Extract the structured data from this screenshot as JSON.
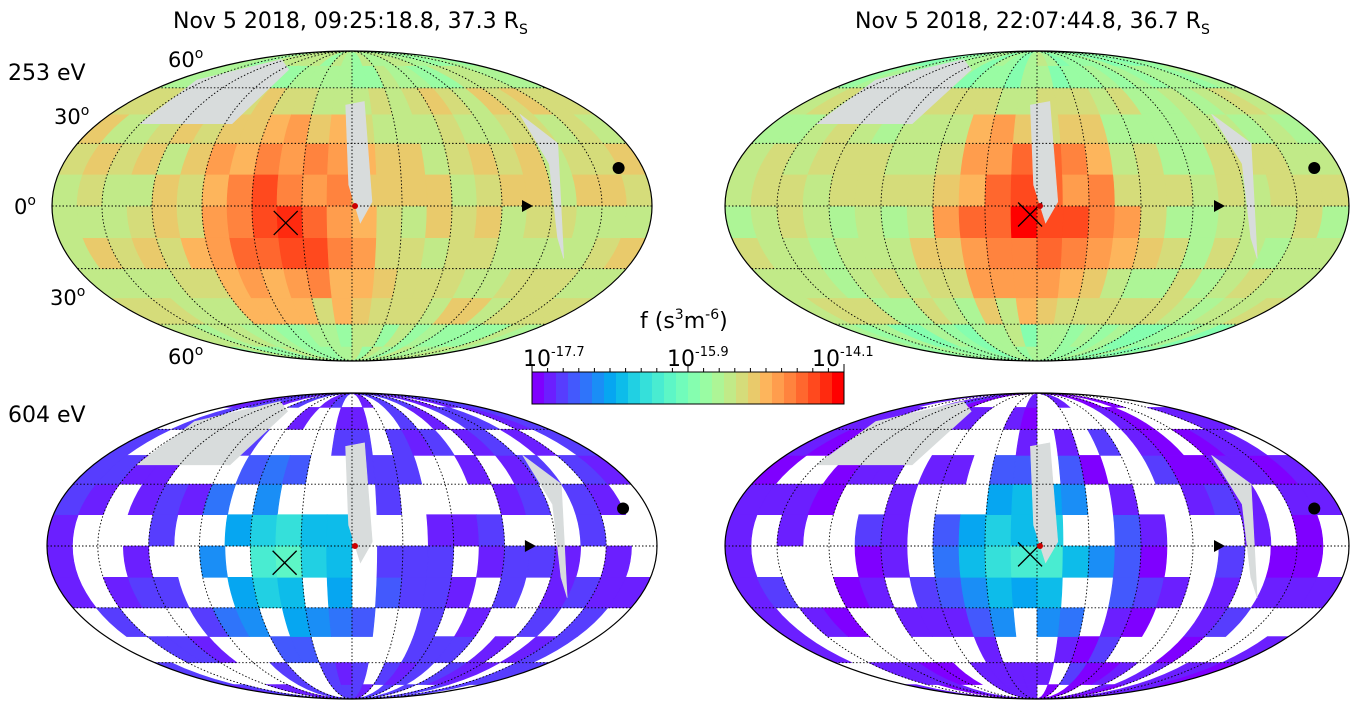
{
  "figure": {
    "panel_titles": [
      {
        "date": "Nov 5 2018, 09:25:18.8, 37.3 R",
        "sub": "S"
      },
      {
        "date": "Nov 5 2018, 22:07:44.8, 36.7 R",
        "sub": "S"
      }
    ],
    "energy_labels": [
      "253 eV",
      "604 eV"
    ],
    "latitude_ticks": [
      {
        "val": "60",
        "sup": "o"
      },
      {
        "val": "30",
        "sup": "o"
      },
      {
        "val": "0",
        "sup": "o"
      },
      {
        "val": "30",
        "sup": "o"
      },
      {
        "val": "60",
        "sup": "o"
      }
    ]
  },
  "chart_data": {
    "type": "heatmap",
    "projection": "mollweide (Aitoff-like) all-sky",
    "grid": "meridians every 30 deg, parallels at 30 and 60 deg",
    "colorbar": {
      "label_prefix": "f (s",
      "label_sup1": "3",
      "label_mid": "m",
      "label_sup2": "-6",
      "label_suffix": ")",
      "scale": "log",
      "range_log10": [
        -17.7,
        -14.1
      ],
      "ticks": [
        {
          "base": "10",
          "exp": "-17.7"
        },
        {
          "base": "10",
          "exp": "-15.9"
        },
        {
          "base": "10",
          "exp": "-14.1"
        }
      ],
      "colormap": "rainbow",
      "colors": [
        "#7f00ff",
        "#6b1fff",
        "#573dfe",
        "#4359fd",
        "#2f74fa",
        "#1a8ef6",
        "#06a6f1",
        "#0dbcea",
        "#21d0e3",
        "#35e0da",
        "#49ecd1",
        "#5df6c6",
        "#71fcbb",
        "#85feaf",
        "#99fca3",
        "#adf596",
        "#c1ea88",
        "#d5dc7a",
        "#e9ca6b",
        "#fdb55c",
        "#ff9d4d",
        "#ff833e",
        "#ff672e",
        "#ff491e",
        "#ff2a0f",
        "#ff0000"
      ]
    },
    "panels": [
      {
        "energy": "253 eV",
        "time": "09:25:18.8",
        "peak_log10": -14.3,
        "background_log10": -15.3
      },
      {
        "energy": "253 eV",
        "time": "22:07:44.8",
        "peak_log10": -14.2,
        "background_log10": -15.4
      },
      {
        "energy": "604 eV",
        "time": "09:25:18.8",
        "peak_log10": -16.2,
        "background_log10": -17.5
      },
      {
        "energy": "604 eV",
        "time": "22:07:44.8",
        "peak_log10": -16.1,
        "background_log10": -17.6
      }
    ],
    "markers": [
      "cross (x)",
      "small red dot",
      "triangle",
      "black circle"
    ]
  }
}
